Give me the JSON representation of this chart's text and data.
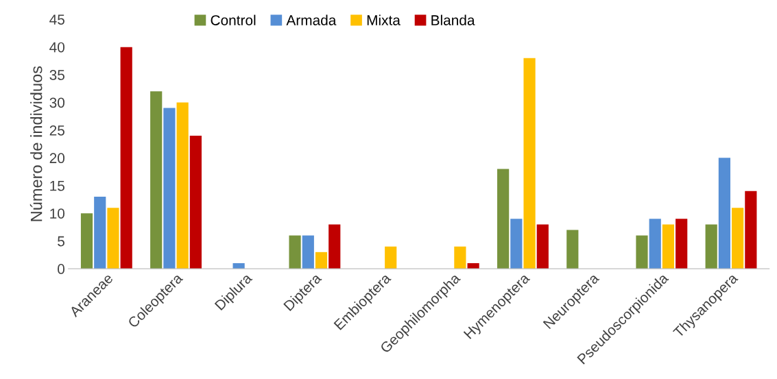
{
  "chart_data": {
    "type": "bar",
    "ylabel": "Número de individuos",
    "categories": [
      "Araneae",
      "Coleoptera",
      "Diplura",
      "Diptera",
      "Embioptera",
      "Geophilomorpha",
      "Hymenoptera",
      "Neuroptera",
      "Pseudoscorpionida",
      "Thysanopera"
    ],
    "series": [
      {
        "name": "Control",
        "color": "#77933c",
        "values": [
          10,
          32,
          0,
          6,
          0,
          0,
          18,
          7,
          6,
          8
        ]
      },
      {
        "name": "Armada",
        "color": "#558ed5",
        "values": [
          13,
          29,
          1,
          6,
          0,
          0,
          9,
          0,
          9,
          20
        ]
      },
      {
        "name": "Mixta",
        "color": "#ffc000",
        "values": [
          11,
          30,
          0,
          3,
          4,
          4,
          38,
          0,
          8,
          11
        ]
      },
      {
        "name": "Blanda",
        "color": "#c00000",
        "values": [
          40,
          24,
          0,
          8,
          0,
          1,
          8,
          0,
          9,
          14
        ]
      }
    ],
    "ylim": [
      0,
      45
    ],
    "yticks": [
      0,
      5,
      10,
      15,
      20,
      25,
      30,
      35,
      40,
      45
    ],
    "grid": false,
    "legend": "top"
  }
}
